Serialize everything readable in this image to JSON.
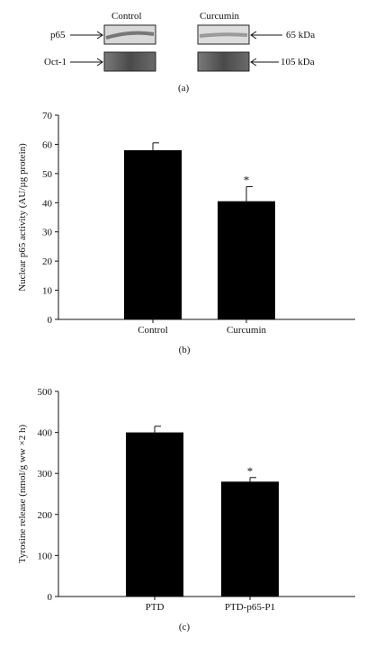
{
  "blot": {
    "col_labels": [
      "Control",
      "Curcumin"
    ],
    "row_labels": [
      "p65",
      "Oct-1"
    ],
    "sizes": [
      "65 kDa",
      "105 kDa"
    ],
    "panel": "(a)"
  },
  "chart_data": [
    {
      "type": "bar",
      "panel": "(b)",
      "categories": [
        "Control",
        "Curcumin"
      ],
      "values": [
        58,
        40.5
      ],
      "errors": [
        2.5,
        5
      ],
      "significance": [
        "",
        "*"
      ],
      "ylabel": "Nuclear p65 activity (AU/µg protein)",
      "ylim": [
        0,
        70
      ],
      "yticks": [
        0,
        10,
        20,
        30,
        40,
        50,
        60,
        70
      ]
    },
    {
      "type": "bar",
      "panel": "(c)",
      "categories": [
        "PTD",
        "PTD-p65-P1"
      ],
      "values": [
        400,
        280
      ],
      "errors": [
        15,
        10
      ],
      "significance": [
        "",
        "*"
      ],
      "ylabel": "Tyrosine release (nmol/g ww ×2 h)",
      "ylim": [
        0,
        500
      ],
      "yticks": [
        0,
        100,
        200,
        300,
        400,
        500
      ]
    }
  ]
}
